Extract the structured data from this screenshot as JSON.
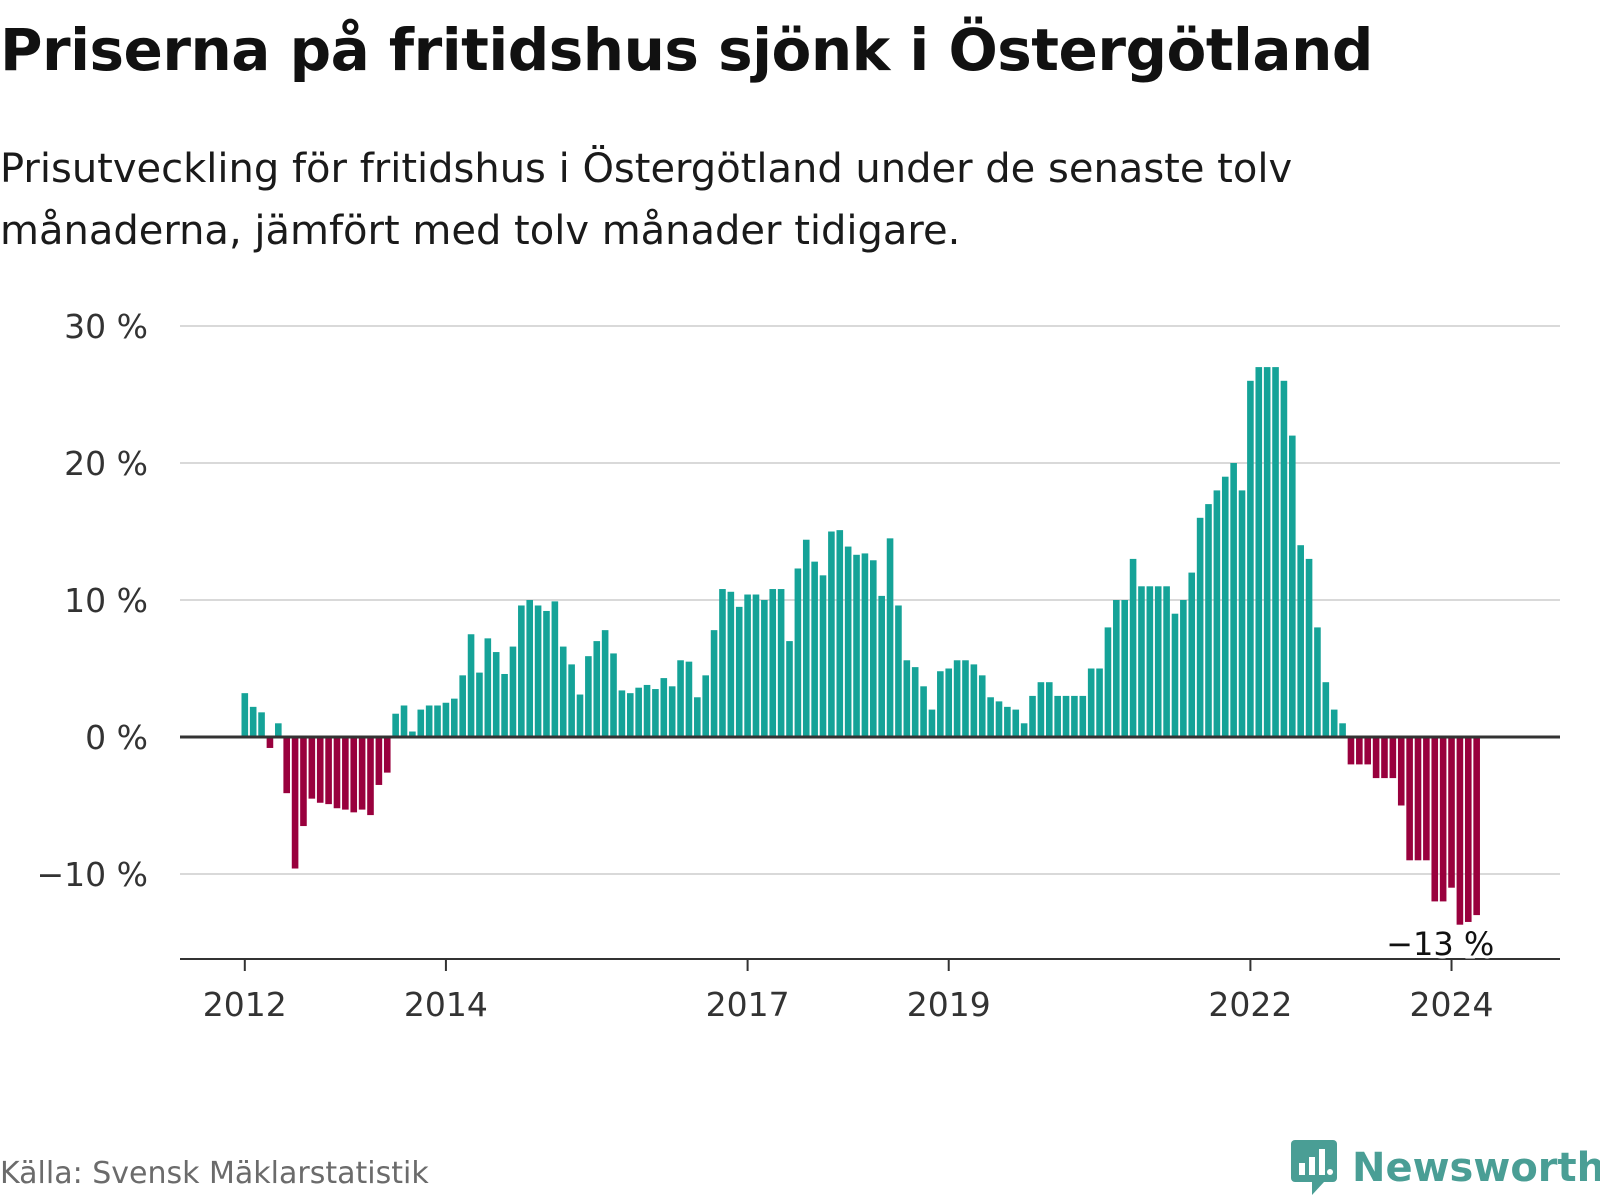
{
  "header": {
    "title": "Priserna på fritidshus sjönk i Östergötland",
    "subtitle": "Prisutveckling för fritidshus i Östergötland under de senaste tolv månaderna, jämfört med tolv månader tidigare."
  },
  "footer": {
    "source": "Källa: Svensk Mäklarstatistik",
    "brand": "Newsworthy",
    "brand_icon": "newsworthy-logo-icon"
  },
  "colors": {
    "positive": "#15a398",
    "negative": "#99003d",
    "grid": "#d9d9d9",
    "axis": "#333333",
    "brand": "#4a9e95"
  },
  "chart_data": {
    "type": "bar",
    "title": "Priserna på fritidshus sjönk i Östergötland",
    "xlabel": "",
    "ylabel": "",
    "ylim": [
      -16,
      30
    ],
    "y_ticks": [
      30,
      20,
      10,
      0,
      -10
    ],
    "y_tick_labels": [
      "30 %",
      "20 %",
      "10 %",
      "0 %",
      "−10 %"
    ],
    "x_ticks": [
      {
        "label": "2012",
        "index": 0
      },
      {
        "label": "2014",
        "index": 24
      },
      {
        "label": "2017",
        "index": 60
      },
      {
        "label": "2019",
        "index": 84
      },
      {
        "label": "2022",
        "index": 120
      },
      {
        "label": "2024",
        "index": 144
      }
    ],
    "annotation": {
      "label": "−13 %",
      "index": 144
    },
    "start": "2012-01",
    "values": [
      3.2,
      2.2,
      1.8,
      -0.8,
      1.0,
      -4.1,
      -9.6,
      -6.5,
      -4.5,
      -4.8,
      -4.9,
      -5.2,
      -5.3,
      -5.5,
      -5.3,
      -5.7,
      -3.5,
      -2.6,
      1.7,
      2.3,
      0.4,
      2.0,
      2.3,
      2.3,
      2.5,
      2.8,
      4.5,
      7.5,
      4.7,
      7.2,
      6.2,
      4.6,
      6.6,
      9.6,
      10.0,
      9.6,
      9.2,
      9.9,
      6.6,
      5.3,
      3.1,
      5.9,
      7.0,
      7.8,
      6.1,
      3.4,
      3.2,
      3.6,
      3.8,
      3.5,
      4.3,
      3.7,
      5.6,
      5.5,
      2.9,
      4.5,
      7.8,
      10.8,
      10.6,
      9.5,
      10.4,
      10.4,
      10.0,
      10.8,
      10.8,
      7.0,
      12.3,
      14.4,
      12.8,
      11.8,
      15.0,
      15.1,
      13.9,
      13.3,
      13.4,
      12.9,
      10.3,
      14.5,
      9.6,
      5.6,
      5.1,
      3.7,
      2.0,
      4.8,
      5.0,
      5.6,
      5.6,
      5.3,
      4.5,
      2.9,
      2.6,
      2.2,
      2.0,
      1.0,
      3.0,
      4.0,
      4.0,
      3.0,
      3.0,
      3.0,
      3.0,
      5.0,
      5.0,
      8.0,
      10.0,
      10.0,
      13.0,
      11.0,
      11.0,
      11.0,
      11.0,
      9.0,
      10.0,
      12.0,
      16.0,
      17.0,
      18.0,
      19.0,
      20.0,
      18.0,
      26.0,
      27.0,
      27.0,
      27.0,
      26.0,
      22.0,
      14.0,
      13.0,
      8.0,
      4.0,
      2.0,
      1.0,
      -2.0,
      -2.0,
      -2.0,
      -3.0,
      -3.0,
      -3.0,
      -5.0,
      -9.0,
      -9.0,
      -9.0,
      -12.0,
      -12.0,
      -11.0,
      -13.7,
      -13.5,
      -13.0
    ]
  }
}
